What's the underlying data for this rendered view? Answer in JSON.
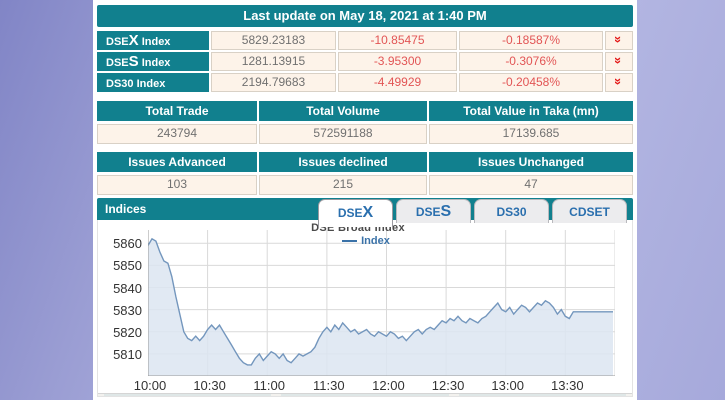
{
  "header": {
    "last_update": "Last update on May 18, 2021 at 1:40 PM"
  },
  "index_table": {
    "rows": [
      {
        "name_prefix": "DSE",
        "name_big": "X",
        "name_suffix": " Index",
        "value": "5829.23183",
        "change": "-10.85475",
        "change_pct": "-0.18587%",
        "trend_icon": "chevron-double-down",
        "trend_glyph": "»"
      },
      {
        "name_prefix": "DSE",
        "name_big": "S",
        "name_suffix": " Index",
        "value": "1281.13915",
        "change": "-3.95300",
        "change_pct": "-0.3076%",
        "trend_icon": "chevron-double-down",
        "trend_glyph": "»"
      },
      {
        "name_prefix": "DS30",
        "name_big": "",
        "name_suffix": " Index",
        "value": "2194.79683",
        "change": "-4.49929",
        "change_pct": "-0.20458%",
        "trend_icon": "chevron-double-down",
        "trend_glyph": "»"
      }
    ]
  },
  "totals": {
    "headers": [
      "Total Trade",
      "Total Volume",
      "Total Value in Taka (mn)"
    ],
    "values": [
      "243794",
      "572591188",
      "17139.685"
    ]
  },
  "issues": {
    "headers": [
      "Issues Advanced",
      "Issues declined",
      "Issues Unchanged"
    ],
    "values": [
      "103",
      "215",
      "47"
    ]
  },
  "indices_panel": {
    "title": "Indices",
    "tabs": [
      {
        "prefix": "DSE",
        "big": "X",
        "active": true
      },
      {
        "prefix": "DSE",
        "big": "S",
        "active": false
      },
      {
        "prefix": "DS30",
        "big": "",
        "active": false
      },
      {
        "prefix": "CDSET",
        "big": "",
        "active": false
      }
    ]
  },
  "chart_data": {
    "type": "area",
    "title": "DSE Broad Index",
    "legend": [
      "Index"
    ],
    "x_start": "10:00",
    "interval_min": 2,
    "x_total_minutes": 235,
    "x_tick_minutes": [
      0,
      30,
      60,
      90,
      120,
      150,
      180,
      210
    ],
    "x_tick_labels": [
      "10:00",
      "10:30",
      "11:00",
      "11:30",
      "12:00",
      "12:30",
      "13:00",
      "13:30"
    ],
    "y_ticks": [
      5810,
      5820,
      5830,
      5840,
      5850,
      5860
    ],
    "ylim": [
      5800,
      5866
    ],
    "grid": true,
    "legend_position": "top-center",
    "line_color": "#7396bd",
    "fill_color": "#dce5f1",
    "values": [
      5859,
      5862,
      5861,
      5856,
      5852,
      5851,
      5845,
      5836,
      5828,
      5820,
      5817,
      5816,
      5818,
      5816,
      5818,
      5821,
      5823,
      5821,
      5823,
      5820,
      5817,
      5814,
      5811,
      5808,
      5806,
      5805,
      5805,
      5808,
      5810,
      5807,
      5809,
      5811,
      5810,
      5808,
      5810,
      5807,
      5806,
      5808,
      5810,
      5809,
      5810,
      5811,
      5813,
      5817,
      5820,
      5822,
      5820,
      5823,
      5821,
      5824,
      5822,
      5820,
      5821,
      5819,
      5820,
      5821,
      5819,
      5818,
      5820,
      5819,
      5818,
      5820,
      5819,
      5817,
      5818,
      5816,
      5818,
      5820,
      5821,
      5819,
      5821,
      5822,
      5821,
      5823,
      5825,
      5824,
      5826,
      5825,
      5827,
      5825,
      5824,
      5826,
      5825,
      5824,
      5826,
      5827,
      5829,
      5831,
      5833,
      5830,
      5829,
      5831,
      5828,
      5830,
      5832,
      5831,
      5829,
      5831,
      5833,
      5832,
      5834,
      5833,
      5831,
      5828,
      5830,
      5827,
      5826,
      5829,
      5829,
      5829,
      5829,
      5829,
      5829,
      5829,
      5829,
      5829,
      5829,
      5829
    ]
  },
  "colors": {
    "teal_header": "#11808e",
    "cream_cell": "#fdf3e9",
    "negative_red": "#e25555",
    "arrow_red": "#e41a1a",
    "tab_text_blue": "#2a6fae",
    "chart_line": "#7396bd",
    "chart_fill": "#dce5f1",
    "page_bg": "#a6a9db"
  }
}
